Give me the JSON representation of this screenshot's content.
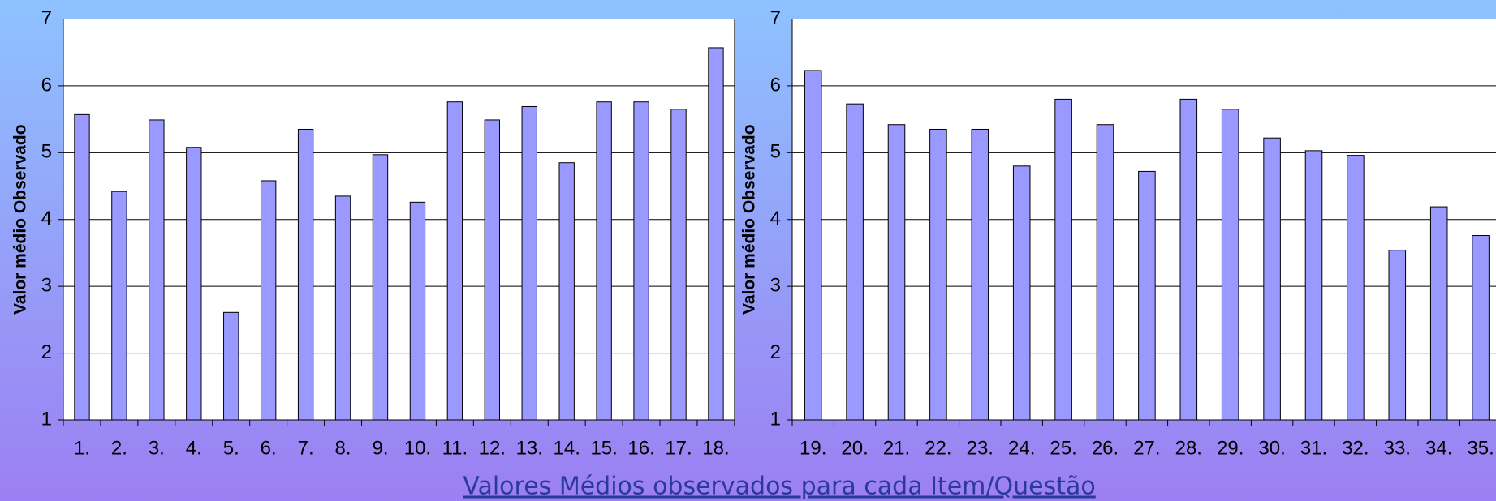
{
  "chart_data": [
    {
      "type": "bar",
      "y_label": "Valor médio Observado",
      "categories": [
        "1.",
        "2.",
        "3.",
        "4.",
        "5.",
        "6.",
        "7.",
        "8.",
        "9.",
        "10.",
        "11.",
        "12.",
        "13.",
        "14.",
        "15.",
        "16.",
        "17.",
        "18."
      ],
      "values": [
        5.57,
        4.42,
        5.49,
        5.08,
        2.61,
        4.58,
        5.35,
        4.35,
        4.97,
        4.26,
        5.76,
        5.49,
        5.69,
        4.85,
        5.76,
        5.76,
        5.65,
        6.57
      ],
      "color": "#9999ff",
      "ylim": [
        1,
        7
      ],
      "yticks": [
        1,
        2,
        3,
        4,
        5,
        6,
        7
      ],
      "grid": true
    },
    {
      "type": "bar",
      "y_label": "Valor médio Observado",
      "categories": [
        "19.",
        "20.",
        "21.",
        "22.",
        "23.",
        "24.",
        "25.",
        "26.",
        "27.",
        "28.",
        "29.",
        "30.",
        "31.",
        "32.",
        "33.",
        "34.",
        "35."
      ],
      "values": [
        6.23,
        5.73,
        5.42,
        5.35,
        5.35,
        4.8,
        5.8,
        5.42,
        4.72,
        5.8,
        5.65,
        5.22,
        5.03,
        4.96,
        3.54,
        4.19,
        3.76
      ],
      "color": "#9999ff",
      "ylim": [
        1,
        7
      ],
      "yticks": [
        1,
        2,
        3,
        4,
        5,
        6,
        7
      ],
      "grid": true
    }
  ],
  "caption": "Valores Médios observados para cada Item/Questão"
}
